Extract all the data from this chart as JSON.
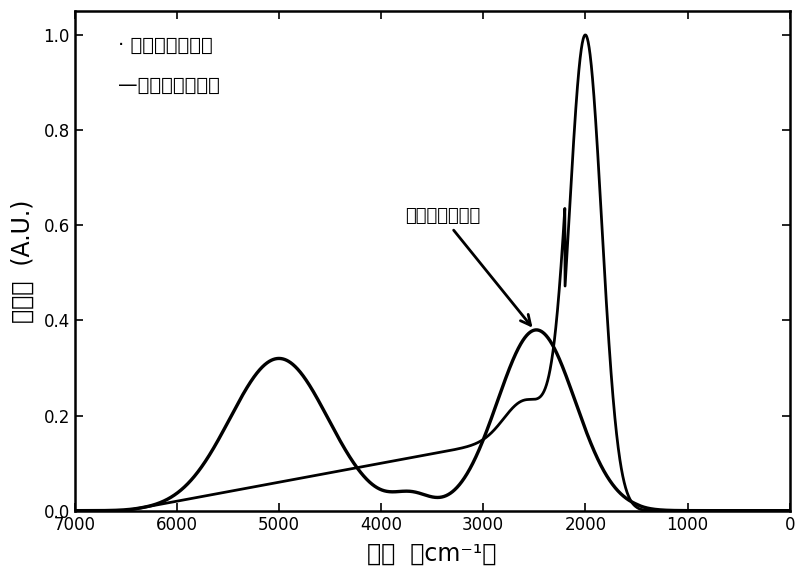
{
  "title": "",
  "xlabel": "波数  （cm⁻¹）",
  "ylabel": "光电流  (A.U.)",
  "xlim": [
    7000,
    0
  ],
  "ylim": [
    0.0,
    1.05
  ],
  "xticks": [
    7000,
    6000,
    5000,
    4000,
    3000,
    2000,
    1000,
    0
  ],
  "yticks": [
    0.0,
    0.2,
    0.4,
    0.6,
    0.8,
    1.0
  ],
  "legend_with": "· 有干涉增强结构",
  "legend_without": "—无干涉增强结构",
  "annotation_text": "有干涉增强结构",
  "line_color": "#000000",
  "bg_color": "#ffffff",
  "linewidth": 2.2
}
